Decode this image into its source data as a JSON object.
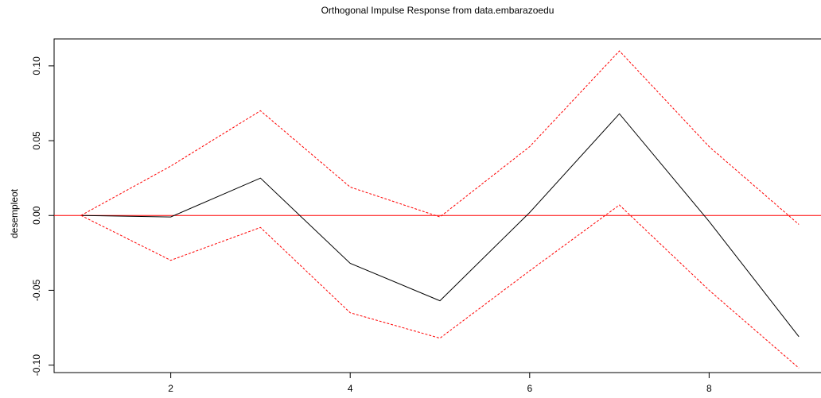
{
  "chart_data": {
    "type": "line",
    "title": "Orthogonal Impulse Response from data.embarazoedu",
    "xlabel": "",
    "ylabel": "desempleot",
    "xlim": [
      0.7,
      9.3
    ],
    "ylim": [
      -0.105,
      0.118
    ],
    "x_ticks": [
      "2",
      "4",
      "6",
      "8"
    ],
    "y_ticks": [
      "-0.10",
      "-0.05",
      "0.00",
      "0.05",
      "0.10"
    ],
    "grid": false,
    "legend": "none",
    "x": [
      1,
      2,
      3,
      4,
      5,
      6,
      7,
      8,
      9
    ],
    "series": [
      {
        "role": "response",
        "style": "solid",
        "color": "#000000",
        "values": [
          0.0,
          -0.001,
          0.025,
          -0.032,
          -0.057,
          0.002,
          0.068,
          -0.004,
          -0.081
        ]
      },
      {
        "role": "upper",
        "style": "dashed",
        "color": "#ff0000",
        "values": [
          0.0,
          0.033,
          0.07,
          0.019,
          -0.001,
          0.046,
          0.11,
          0.046,
          -0.006
        ]
      },
      {
        "role": "lower",
        "style": "dashed",
        "color": "#ff0000",
        "values": [
          0.0,
          -0.03,
          -0.008,
          -0.065,
          -0.082,
          -0.037,
          0.007,
          -0.05,
          -0.102
        ]
      }
    ],
    "reference_line": {
      "y": 0,
      "color": "#ff0000"
    }
  }
}
